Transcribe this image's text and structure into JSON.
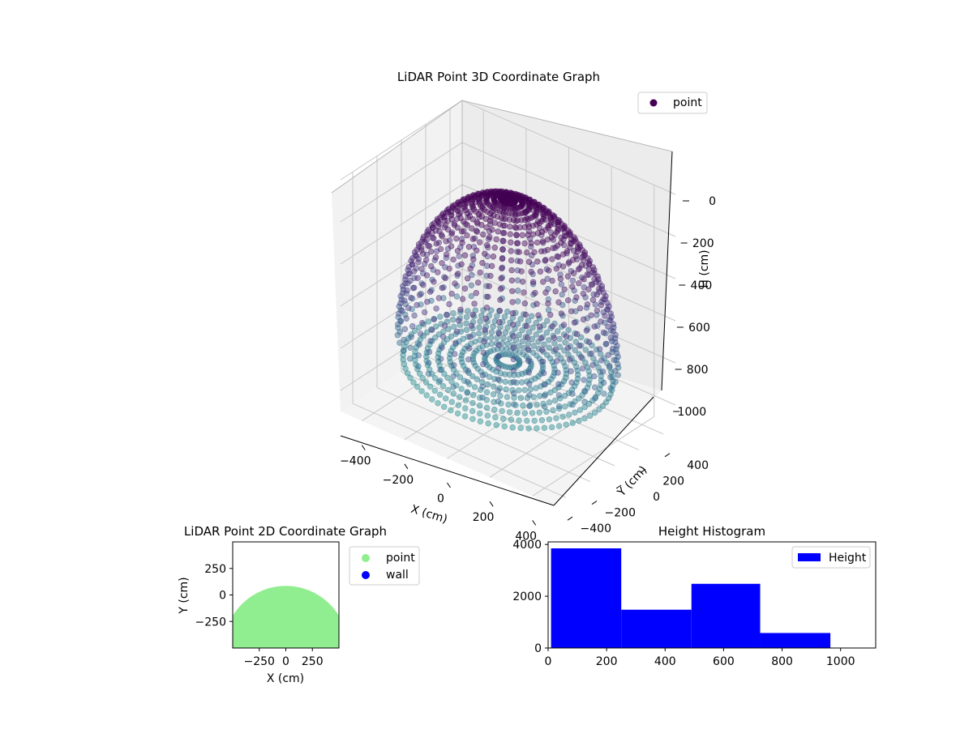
{
  "chart_data": [
    {
      "type": "scatter",
      "title": "LiDAR Point 3D Coordinate Graph",
      "projection": "3d",
      "xlabel": "X (cm)",
      "ylabel": "Y (cm)",
      "zlabel": "H (cm)",
      "xticks": [
        "−400",
        "−200",
        "0",
        "200",
        "400"
      ],
      "yticks": [
        "−400",
        "−200",
        "0",
        "200",
        "400"
      ],
      "zticks": [
        "0",
        "200",
        "400",
        "600",
        "800",
        "1000"
      ],
      "xlim": [
        -500,
        500
      ],
      "ylim": [
        -500,
        500
      ],
      "zlim": [
        0,
        1100
      ],
      "z_axis_inverted": true,
      "legend": [
        "point"
      ],
      "legend_position": "top-right",
      "colormap": "viridis",
      "grid": true,
      "series": [
        {
          "name": "point",
          "shape": "hemispherical dome shell of points, radius ~450 cm, rising to ~0 cm height at the top, flat base near ~800 cm height",
          "color": "#440154"
        }
      ]
    },
    {
      "type": "scatter",
      "title": "LiDAR Point 2D Coordinate Graph",
      "xlabel": "X (cm)",
      "ylabel": "Y (cm)",
      "xticks": [
        "−250",
        "0",
        "250"
      ],
      "yticks": [
        "−250",
        "0",
        "250"
      ],
      "xlim": [
        -500,
        500
      ],
      "ylim": [
        -500,
        500
      ],
      "legend": [
        "point",
        "wall"
      ],
      "legend_position": "outside-right",
      "series": [
        {
          "name": "point",
          "color": "#90ee90",
          "region": "filled half-disc centred near (0, -500), radius ~500, top at y ~ 85"
        },
        {
          "name": "wall",
          "color": "#0000ff",
          "points": []
        }
      ]
    },
    {
      "type": "bar",
      "subtype": "histogram",
      "title": "Height Histogram",
      "series": [
        {
          "name": "Height",
          "color": "#0000ff",
          "bins": [
            [
              10,
              250
            ],
            [
              250,
              490
            ],
            [
              490,
              725
            ],
            [
              725,
              965
            ]
          ],
          "values": [
            3850,
            1480,
            2480,
            580
          ]
        }
      ],
      "xticks": [
        "0",
        "200",
        "400",
        "600",
        "800",
        "1000"
      ],
      "yticks": [
        "0",
        "2000",
        "4000"
      ],
      "xlim": [
        0,
        1120
      ],
      "ylim": [
        0,
        4100
      ],
      "legend": [
        "Height"
      ],
      "legend_position": "top-right"
    }
  ]
}
